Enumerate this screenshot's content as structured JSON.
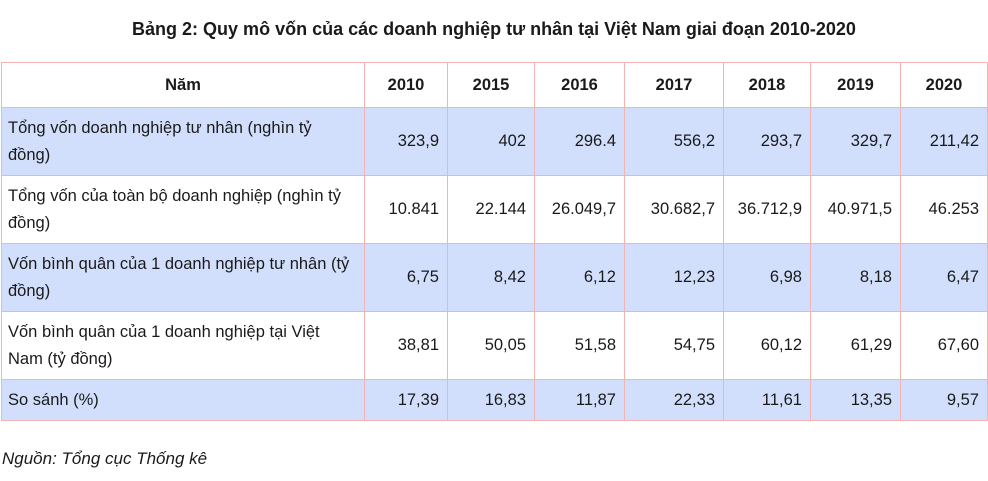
{
  "title": "Bảng 2: Quy mô vốn của các doanh nghiệp tư nhân tại Việt Nam giai đoạn 2010-2020",
  "table": {
    "headers": [
      "Năm",
      "2010",
      "2015",
      "2016",
      "2017",
      "2018",
      "2019",
      "2020"
    ],
    "rows": [
      {
        "label": "Tổng vốn doanh nghiệp tư nhân (nghìn tỷ đồng)",
        "values": [
          "323,9",
          "402",
          "296.4",
          "556,2",
          "293,7",
          "329,7",
          "211,42"
        ]
      },
      {
        "label": "Tổng vốn của toàn bộ doanh nghiệp (nghìn tỷ đồng)",
        "values": [
          "10.841",
          "22.144",
          "26.049,7",
          "30.682,7",
          "36.712,9",
          "40.971,5",
          "46.253"
        ]
      },
      {
        "label": "Vốn bình quân của 1 doanh nghiệp tư nhân (tỷ đồng)",
        "values": [
          "6,75",
          "8,42",
          "6,12",
          "12,23",
          "6,98",
          "8,18",
          "6,47"
        ]
      },
      {
        "label": "Vốn bình quân của 1 doanh nghiệp tại Việt Nam (tỷ đồng)",
        "values": [
          "38,81",
          "50,05",
          "51,58",
          "54,75",
          "60,12",
          "61,29",
          "67,60"
        ]
      },
      {
        "label": "So sánh (%)",
        "values": [
          "17,39",
          "16,83",
          "11,87",
          "22,33",
          "11,61",
          "13,35",
          "9,57"
        ]
      }
    ]
  },
  "source": "Nguồn: Tổng cục Thống kê",
  "colors": {
    "shaded_row": "#d2dffc",
    "border": "#f2b3b3"
  }
}
